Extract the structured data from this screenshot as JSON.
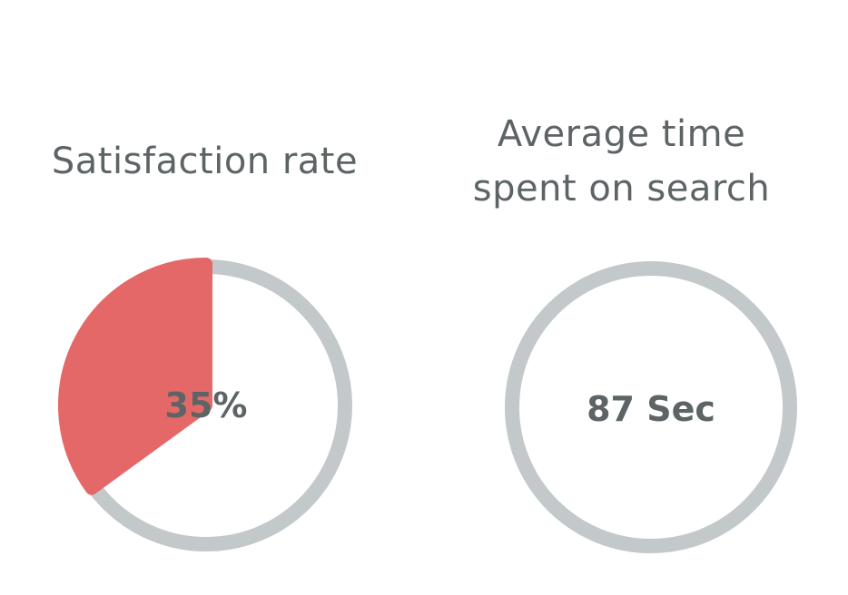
{
  "metrics": [
    {
      "title": "Satisfaction rate",
      "value_label": "35%",
      "fraction": 0.35
    },
    {
      "title_lines": [
        "Average time",
        "spent on search"
      ],
      "value_label": "87 Sec"
    }
  ],
  "chart_data": [
    {
      "type": "pie",
      "title": "Satisfaction rate",
      "values": [
        35,
        65
      ],
      "value_label": "35%",
      "colors": [
        "#e46867",
        "#ffffff"
      ]
    },
    {
      "type": "pie",
      "title": "Average time spent on search",
      "values": [
        87
      ],
      "value_label": "87 Sec",
      "colors": [
        "#c3c8cb"
      ]
    }
  ],
  "colors": {
    "accent": "#e46867",
    "ring": "#c3c8cb",
    "text": "#5d6466"
  }
}
